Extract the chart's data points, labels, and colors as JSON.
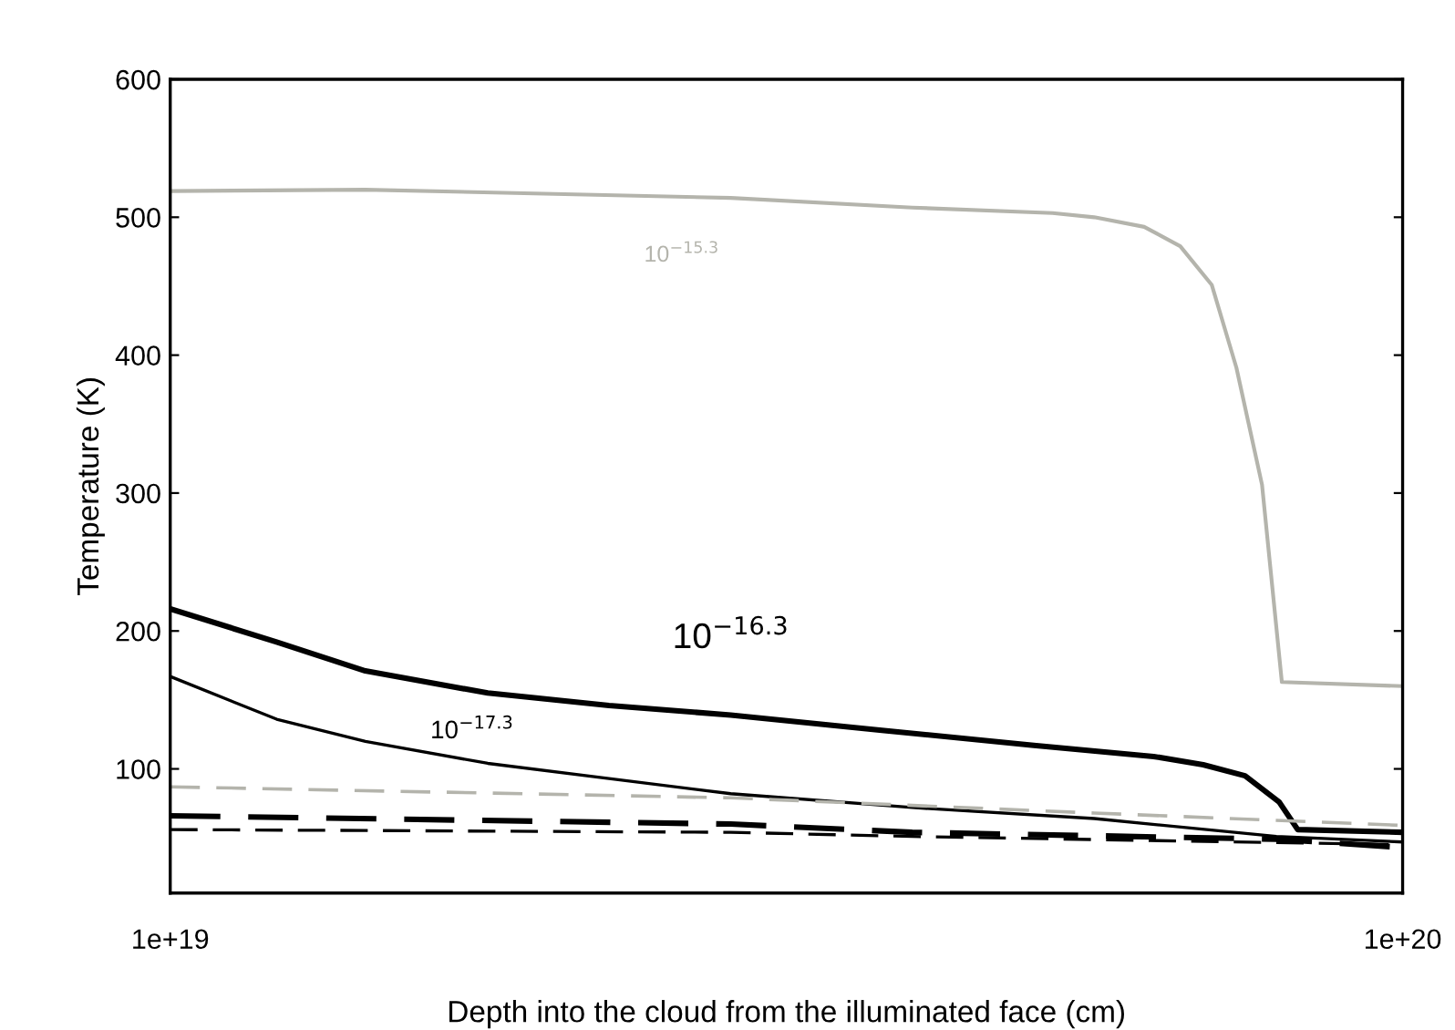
{
  "chart_data": {
    "type": "line",
    "xlabel": "Depth into the cloud from the illuminated face (cm)",
    "ylabel": "Temperature (K)",
    "log": "x",
    "xlim": [
      1e+19,
      1e+20
    ],
    "xticks": [
      {
        "value": 1e+19,
        "label": "1e+19"
      },
      {
        "value": 1e+20,
        "label": "1e+20"
      }
    ],
    "ylim": [
      10,
      600
    ],
    "yticks": [
      100,
      200,
      300,
      400,
      500,
      600
    ],
    "grid": false,
    "legend": false,
    "marker": "none",
    "series": [
      {
        "name": "10$^{−15.3}$",
        "color": "#b4b4ac",
        "line_style": "solid",
        "x": [
          1e+19,
          1.44e+19,
          2.85e+19,
          4e+19,
          5.2e+19,
          5.62e+19,
          6.17e+19,
          6.6e+19,
          7e+19,
          7.33e+19,
          7.69e+19,
          7.98e+19,
          1e+20
        ],
        "values": [
          519,
          520,
          514,
          507,
          503,
          500,
          493,
          479,
          451,
          391,
          306,
          163,
          160
        ]
      },
      {
        "name": "10$^{−16.3}$",
        "color": "#000000",
        "line_style": "solid",
        "x": [
          1e+19,
          1.22e+19,
          1.44e+19,
          1.81e+19,
          2.27e+19,
          2.85e+19,
          3.78e+19,
          5.02e+19,
          6.28e+19,
          6.89e+19,
          7.45e+19,
          7.94e+19,
          8.22e+19,
          1e+20
        ],
        "values": [
          216,
          192,
          171,
          155,
          146,
          139,
          128,
          117,
          109,
          103,
          95,
          76,
          56,
          54
        ]
      },
      {
        "name": "10$^{−17.3}$",
        "color": "#000000",
        "line_style": "solid",
        "x": [
          1e+19,
          1.22e+19,
          1.44e+19,
          1.81e+19,
          2.27e+19,
          2.85e+19,
          4e+19,
          5.62e+19,
          7.9e+19,
          1e+20
        ],
        "values": [
          167,
          136,
          120,
          104,
          93,
          82,
          72,
          64,
          51,
          47
        ]
      },
      {
        "color": "#b4b4ac",
        "line_style": "dashed",
        "x": [
          1e+19,
          2.85e+19,
          5.62e+19,
          1e+20
        ],
        "values": [
          87,
          79,
          68,
          59
        ]
      },
      {
        "color": "#000000",
        "line_style": "dashed",
        "x": [
          1e+19,
          2.85e+19,
          4e+19,
          7.9e+19,
          1e+20
        ],
        "values": [
          66,
          60,
          54,
          49,
          43
        ]
      },
      {
        "color": "#000000",
        "line_style": "dashed",
        "x": [
          1e+19,
          2.85e+19,
          4e+19,
          1e+20
        ],
        "values": [
          56,
          54,
          51,
          45
        ]
      }
    ]
  }
}
